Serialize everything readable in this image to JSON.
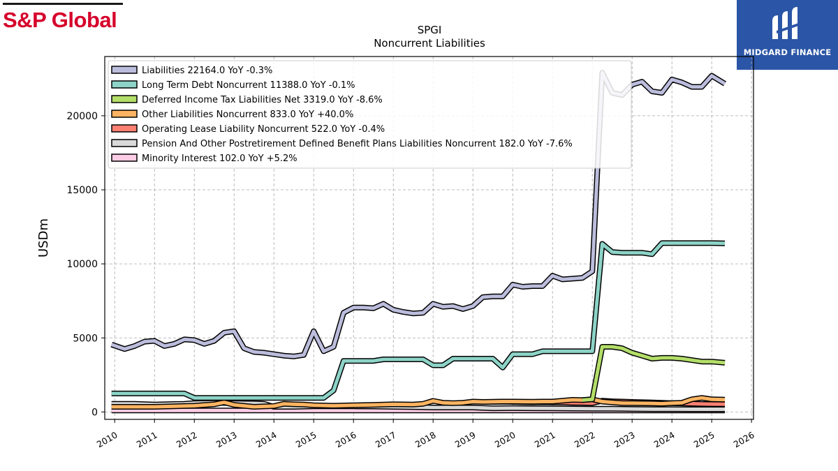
{
  "brand": {
    "name": "S&P Global"
  },
  "logo": {
    "name": "MIDGARD FINANCE",
    "color": "#2b55a6"
  },
  "chart_data": {
    "type": "line",
    "title": "SPGI",
    "subtitle": "Noncurrent  Liabilities",
    "ylabel": "USDm",
    "xlabel": "",
    "xlim": [
      2009.75,
      2026.05
    ],
    "ylim": [
      -500,
      24000
    ],
    "grid": true,
    "legend_position": "top-left",
    "x_ticks": [
      2010,
      2011,
      2012,
      2013,
      2014,
      2015,
      2016,
      2017,
      2018,
      2019,
      2020,
      2021,
      2022,
      2023,
      2024,
      2025,
      2026
    ],
    "y_ticks": [
      0,
      5000,
      10000,
      15000,
      20000
    ],
    "series": [
      {
        "name": "Liabilities",
        "legend": "Liabilities  22164.0 YoY -0.3%",
        "color": "#bcbddc",
        "points": [
          [
            2009.92,
            4550
          ],
          [
            2010.25,
            4250
          ],
          [
            2010.5,
            4450
          ],
          [
            2010.75,
            4750
          ],
          [
            2011.0,
            4800
          ],
          [
            2011.25,
            4450
          ],
          [
            2011.5,
            4600
          ],
          [
            2011.75,
            4900
          ],
          [
            2012.0,
            4850
          ],
          [
            2012.25,
            4600
          ],
          [
            2012.5,
            4800
          ],
          [
            2012.75,
            5350
          ],
          [
            2013.0,
            5450
          ],
          [
            2013.25,
            4300
          ],
          [
            2013.5,
            4050
          ],
          [
            2013.75,
            4000
          ],
          [
            2014.0,
            3900
          ],
          [
            2014.25,
            3800
          ],
          [
            2014.5,
            3750
          ],
          [
            2014.75,
            3850
          ],
          [
            2015.0,
            5450
          ],
          [
            2015.25,
            4100
          ],
          [
            2015.5,
            4400
          ],
          [
            2015.75,
            6700
          ],
          [
            2016.0,
            7050
          ],
          [
            2016.25,
            7050
          ],
          [
            2016.5,
            7000
          ],
          [
            2016.75,
            7300
          ],
          [
            2017.0,
            6900
          ],
          [
            2017.25,
            6750
          ],
          [
            2017.5,
            6650
          ],
          [
            2017.75,
            6700
          ],
          [
            2018.0,
            7300
          ],
          [
            2018.25,
            7100
          ],
          [
            2018.5,
            7150
          ],
          [
            2018.75,
            6950
          ],
          [
            2019.0,
            7150
          ],
          [
            2019.25,
            7750
          ],
          [
            2019.5,
            7800
          ],
          [
            2019.75,
            7800
          ],
          [
            2020.0,
            8600
          ],
          [
            2020.25,
            8450
          ],
          [
            2020.5,
            8500
          ],
          [
            2020.75,
            8500
          ],
          [
            2021.0,
            9200
          ],
          [
            2021.25,
            8950
          ],
          [
            2021.5,
            9000
          ],
          [
            2021.75,
            9050
          ],
          [
            2022.0,
            9500
          ],
          [
            2022.25,
            22900
          ],
          [
            2022.5,
            21550
          ],
          [
            2022.75,
            21400
          ],
          [
            2023.0,
            22100
          ],
          [
            2023.25,
            22300
          ],
          [
            2023.5,
            21650
          ],
          [
            2023.75,
            21550
          ],
          [
            2024.0,
            22450
          ],
          [
            2024.25,
            22250
          ],
          [
            2024.5,
            21950
          ],
          [
            2024.75,
            21950
          ],
          [
            2025.0,
            22700
          ],
          [
            2025.33,
            22164
          ]
        ]
      },
      {
        "name": "Long Term Debt Noncurrent",
        "legend": "Long Term Debt Noncurrent  11388.0 YoY -0.1%",
        "color": "#8dd3c7",
        "points": [
          [
            2009.92,
            1250
          ],
          [
            2010.25,
            1250
          ],
          [
            2010.5,
            1250
          ],
          [
            2010.75,
            1250
          ],
          [
            2011.0,
            1250
          ],
          [
            2011.25,
            1250
          ],
          [
            2011.5,
            1250
          ],
          [
            2011.75,
            1250
          ],
          [
            2012.0,
            950
          ],
          [
            2012.25,
            950
          ],
          [
            2012.5,
            950
          ],
          [
            2012.75,
            950
          ],
          [
            2013.0,
            950
          ],
          [
            2013.25,
            950
          ],
          [
            2013.5,
            950
          ],
          [
            2013.75,
            950
          ],
          [
            2014.0,
            950
          ],
          [
            2014.25,
            950
          ],
          [
            2014.5,
            950
          ],
          [
            2014.75,
            950
          ],
          [
            2015.0,
            950
          ],
          [
            2015.25,
            950
          ],
          [
            2015.5,
            1450
          ],
          [
            2015.75,
            3450
          ],
          [
            2016.0,
            3450
          ],
          [
            2016.25,
            3450
          ],
          [
            2016.5,
            3450
          ],
          [
            2016.75,
            3550
          ],
          [
            2017.0,
            3550
          ],
          [
            2017.25,
            3550
          ],
          [
            2017.5,
            3550
          ],
          [
            2017.75,
            3550
          ],
          [
            2018.0,
            3150
          ],
          [
            2018.25,
            3150
          ],
          [
            2018.5,
            3600
          ],
          [
            2018.75,
            3600
          ],
          [
            2019.0,
            3600
          ],
          [
            2019.25,
            3600
          ],
          [
            2019.5,
            3600
          ],
          [
            2019.75,
            3000
          ],
          [
            2020.0,
            3900
          ],
          [
            2020.25,
            3900
          ],
          [
            2020.5,
            3900
          ],
          [
            2020.75,
            4100
          ],
          [
            2021.0,
            4100
          ],
          [
            2021.25,
            4100
          ],
          [
            2021.5,
            4100
          ],
          [
            2021.75,
            4100
          ],
          [
            2022.0,
            4100
          ],
          [
            2022.25,
            11350
          ],
          [
            2022.5,
            10800
          ],
          [
            2022.75,
            10750
          ],
          [
            2023.0,
            10750
          ],
          [
            2023.25,
            10750
          ],
          [
            2023.5,
            10650
          ],
          [
            2023.75,
            11400
          ],
          [
            2024.0,
            11400
          ],
          [
            2024.25,
            11400
          ],
          [
            2024.5,
            11400
          ],
          [
            2024.75,
            11400
          ],
          [
            2025.0,
            11400
          ],
          [
            2025.33,
            11388
          ]
        ]
      },
      {
        "name": "Deferred Income Tax Liabilities Net",
        "legend": "Deferred Income Tax Liabilities Net  3319.0 YoY -8.6%",
        "color": "#b3de69",
        "points": [
          [
            2021.75,
            800
          ],
          [
            2022.0,
            850
          ],
          [
            2022.25,
            4400
          ],
          [
            2022.5,
            4400
          ],
          [
            2022.75,
            4300
          ],
          [
            2023.0,
            4000
          ],
          [
            2023.25,
            3800
          ],
          [
            2023.5,
            3600
          ],
          [
            2023.75,
            3650
          ],
          [
            2024.0,
            3650
          ],
          [
            2024.25,
            3600
          ],
          [
            2024.5,
            3500
          ],
          [
            2024.75,
            3400
          ],
          [
            2025.0,
            3400
          ],
          [
            2025.33,
            3319
          ]
        ]
      },
      {
        "name": "Other Liabilities Noncurrent",
        "legend": "Other Liabilities Noncurrent  833.0 YoY +40.0%",
        "color": "#fdb462",
        "points": [
          [
            2009.92,
            350
          ],
          [
            2010.5,
            350
          ],
          [
            2011.0,
            350
          ],
          [
            2011.5,
            380
          ],
          [
            2012.0,
            420
          ],
          [
            2012.5,
            520
          ],
          [
            2012.75,
            650
          ],
          [
            2013.0,
            480
          ],
          [
            2013.5,
            350
          ],
          [
            2014.0,
            400
          ],
          [
            2014.25,
            550
          ],
          [
            2014.5,
            520
          ],
          [
            2014.75,
            500
          ],
          [
            2015.0,
            450
          ],
          [
            2015.5,
            420
          ],
          [
            2016.0,
            450
          ],
          [
            2016.5,
            480
          ],
          [
            2017.0,
            520
          ],
          [
            2017.5,
            500
          ],
          [
            2017.75,
            550
          ],
          [
            2018.0,
            750
          ],
          [
            2018.25,
            620
          ],
          [
            2018.5,
            600
          ],
          [
            2018.75,
            620
          ],
          [
            2019.0,
            700
          ],
          [
            2019.25,
            680
          ],
          [
            2019.5,
            690
          ],
          [
            2019.75,
            700
          ],
          [
            2020.0,
            700
          ],
          [
            2020.5,
            690
          ],
          [
            2020.75,
            700
          ],
          [
            2021.0,
            700
          ],
          [
            2021.5,
            820
          ],
          [
            2021.75,
            800
          ],
          [
            2022.0,
            850
          ],
          [
            2022.25,
            700
          ],
          [
            2022.5,
            650
          ],
          [
            2022.75,
            600
          ],
          [
            2023.0,
            600
          ],
          [
            2023.5,
            580
          ],
          [
            2023.75,
            560
          ],
          [
            2024.0,
            600
          ],
          [
            2024.25,
            620
          ],
          [
            2024.5,
            850
          ],
          [
            2024.75,
            950
          ],
          [
            2025.0,
            850
          ],
          [
            2025.33,
            833
          ]
        ]
      },
      {
        "name": "Operating Lease Liability Noncurrent",
        "legend": "Operating Lease Liability Noncurrent  522.0 YoY -0.4%",
        "color": "#fb8072",
        "points": [
          [
            2019.25,
            680
          ],
          [
            2019.5,
            680
          ],
          [
            2019.75,
            690
          ],
          [
            2020.0,
            680
          ],
          [
            2020.25,
            660
          ],
          [
            2020.5,
            650
          ],
          [
            2020.75,
            660
          ],
          [
            2021.0,
            650
          ],
          [
            2021.25,
            640
          ],
          [
            2021.5,
            620
          ],
          [
            2021.75,
            610
          ],
          [
            2022.0,
            600
          ],
          [
            2022.25,
            760
          ],
          [
            2022.5,
            720
          ],
          [
            2022.75,
            700
          ],
          [
            2023.0,
            680
          ],
          [
            2023.25,
            660
          ],
          [
            2023.5,
            640
          ],
          [
            2023.75,
            620
          ],
          [
            2024.0,
            600
          ],
          [
            2024.25,
            580
          ],
          [
            2024.5,
            560
          ],
          [
            2024.75,
            540
          ],
          [
            2025.0,
            530
          ],
          [
            2025.33,
            522
          ]
        ]
      },
      {
        "name": "Pension And Other Postretirement Defined Benefit Plans Liabilities Noncurrent",
        "legend": "Pension And Other Postretirement Defined Benefit Plans Liabilities Noncurrent  182.0 YoY -7.6%",
        "color": "#d9d9d9",
        "points": [
          [
            2009.92,
            550
          ],
          [
            2010.5,
            550
          ],
          [
            2011.0,
            500
          ],
          [
            2011.75,
            550
          ],
          [
            2012.0,
            600
          ],
          [
            2012.5,
            620
          ],
          [
            2013.0,
            600
          ],
          [
            2013.5,
            580
          ],
          [
            2013.75,
            550
          ],
          [
            2014.0,
            350
          ],
          [
            2014.5,
            350
          ],
          [
            2015.0,
            380
          ],
          [
            2015.5,
            380
          ],
          [
            2016.0,
            380
          ],
          [
            2016.5,
            370
          ],
          [
            2017.0,
            350
          ],
          [
            2017.5,
            330
          ],
          [
            2018.0,
            300
          ],
          [
            2018.5,
            300
          ],
          [
            2019.0,
            300
          ],
          [
            2019.5,
            250
          ],
          [
            2020.0,
            260
          ],
          [
            2020.5,
            250
          ],
          [
            2021.0,
            240
          ],
          [
            2021.5,
            230
          ],
          [
            2022.0,
            220
          ],
          [
            2022.5,
            220
          ],
          [
            2023.0,
            200
          ],
          [
            2023.5,
            190
          ],
          [
            2024.0,
            190
          ],
          [
            2024.5,
            185
          ],
          [
            2025.0,
            185
          ],
          [
            2025.33,
            182
          ]
        ]
      },
      {
        "name": "Minority Interest",
        "legend": "Minority Interest  102.0 YoY +5.2%",
        "color": "#fccde5",
        "points": [
          [
            2009.92,
            100
          ],
          [
            2010.5,
            100
          ],
          [
            2011.0,
            100
          ],
          [
            2011.5,
            100
          ],
          [
            2012.0,
            100
          ],
          [
            2012.5,
            100
          ],
          [
            2013.0,
            100
          ],
          [
            2013.5,
            100
          ],
          [
            2014.0,
            100
          ],
          [
            2014.5,
            100
          ],
          [
            2015.0,
            100
          ],
          [
            2015.5,
            100
          ],
          [
            2016.0,
            100
          ],
          [
            2016.5,
            100
          ],
          [
            2017.0,
            100
          ],
          [
            2017.5,
            100
          ],
          [
            2018.0,
            100
          ],
          [
            2018.5,
            100
          ],
          [
            2019.0,
            100
          ],
          [
            2019.5,
            100
          ],
          [
            2020.0,
            100
          ],
          [
            2020.5,
            100
          ],
          [
            2021.0,
            100
          ],
          [
            2021.5,
            100
          ],
          [
            2022.0,
            100
          ],
          [
            2022.5,
            100
          ],
          [
            2023.0,
            100
          ],
          [
            2023.5,
            100
          ],
          [
            2024.0,
            100
          ],
          [
            2024.5,
            100
          ],
          [
            2025.0,
            100
          ],
          [
            2025.33,
            102
          ]
        ]
      }
    ]
  }
}
